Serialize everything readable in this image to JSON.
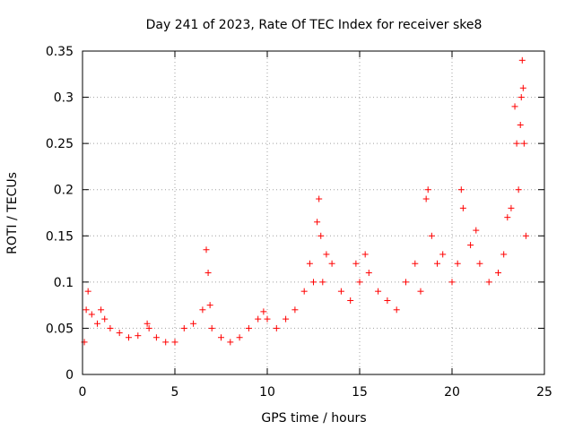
{
  "chart_data": {
    "type": "scatter",
    "title": "Day 241 of 2023, Rate Of TEC Index for receiver ske8",
    "xlabel": "GPS time / hours",
    "ylabel": "ROTI / TECUs",
    "xlim": [
      0,
      25
    ],
    "ylim": [
      0,
      0.35
    ],
    "xticks": [
      "0",
      "5",
      "10",
      "15",
      "20",
      "25"
    ],
    "yticks": [
      "0",
      "0.05",
      "0.1",
      "0.15",
      "0.2",
      "0.25",
      "0.3",
      "0.35"
    ],
    "grid": true,
    "marker": "+",
    "series": [
      {
        "name": "ROTI",
        "color": "#ff0000",
        "x": [
          0.1,
          0.2,
          0.3,
          0.5,
          0.8,
          1.0,
          1.2,
          1.5,
          2.0,
          2.5,
          3.0,
          3.5,
          3.6,
          4.0,
          4.5,
          5.0,
          5.5,
          6.0,
          6.5,
          6.7,
          6.8,
          6.9,
          7.0,
          7.5,
          8.0,
          8.5,
          9.0,
          9.5,
          9.8,
          10.0,
          10.5,
          11.0,
          11.5,
          12.0,
          12.3,
          12.5,
          12.7,
          12.8,
          12.9,
          13.0,
          13.2,
          13.5,
          14.0,
          14.5,
          14.8,
          15.0,
          15.3,
          15.5,
          16.0,
          16.5,
          17.0,
          17.5,
          18.0,
          18.3,
          18.6,
          18.7,
          18.9,
          19.2,
          19.5,
          20.0,
          20.3,
          20.5,
          20.6,
          21.0,
          21.3,
          21.5,
          22.0,
          22.5,
          22.8,
          23.0,
          23.2,
          23.4,
          23.5,
          23.6,
          23.7,
          23.75,
          23.8,
          23.85,
          23.9,
          24.0
        ],
        "y": [
          0.035,
          0.07,
          0.09,
          0.065,
          0.055,
          0.07,
          0.06,
          0.05,
          0.045,
          0.04,
          0.042,
          0.055,
          0.05,
          0.04,
          0.035,
          0.035,
          0.05,
          0.055,
          0.07,
          0.135,
          0.11,
          0.075,
          0.05,
          0.04,
          0.035,
          0.04,
          0.05,
          0.06,
          0.068,
          0.06,
          0.05,
          0.06,
          0.07,
          0.09,
          0.12,
          0.1,
          0.165,
          0.19,
          0.15,
          0.1,
          0.13,
          0.12,
          0.09,
          0.08,
          0.12,
          0.1,
          0.13,
          0.11,
          0.09,
          0.08,
          0.07,
          0.1,
          0.12,
          0.09,
          0.19,
          0.2,
          0.15,
          0.12,
          0.13,
          0.1,
          0.12,
          0.2,
          0.18,
          0.14,
          0.156,
          0.12,
          0.1,
          0.11,
          0.13,
          0.17,
          0.18,
          0.29,
          0.25,
          0.2,
          0.27,
          0.3,
          0.34,
          0.31,
          0.25,
          0.15
        ]
      }
    ]
  }
}
